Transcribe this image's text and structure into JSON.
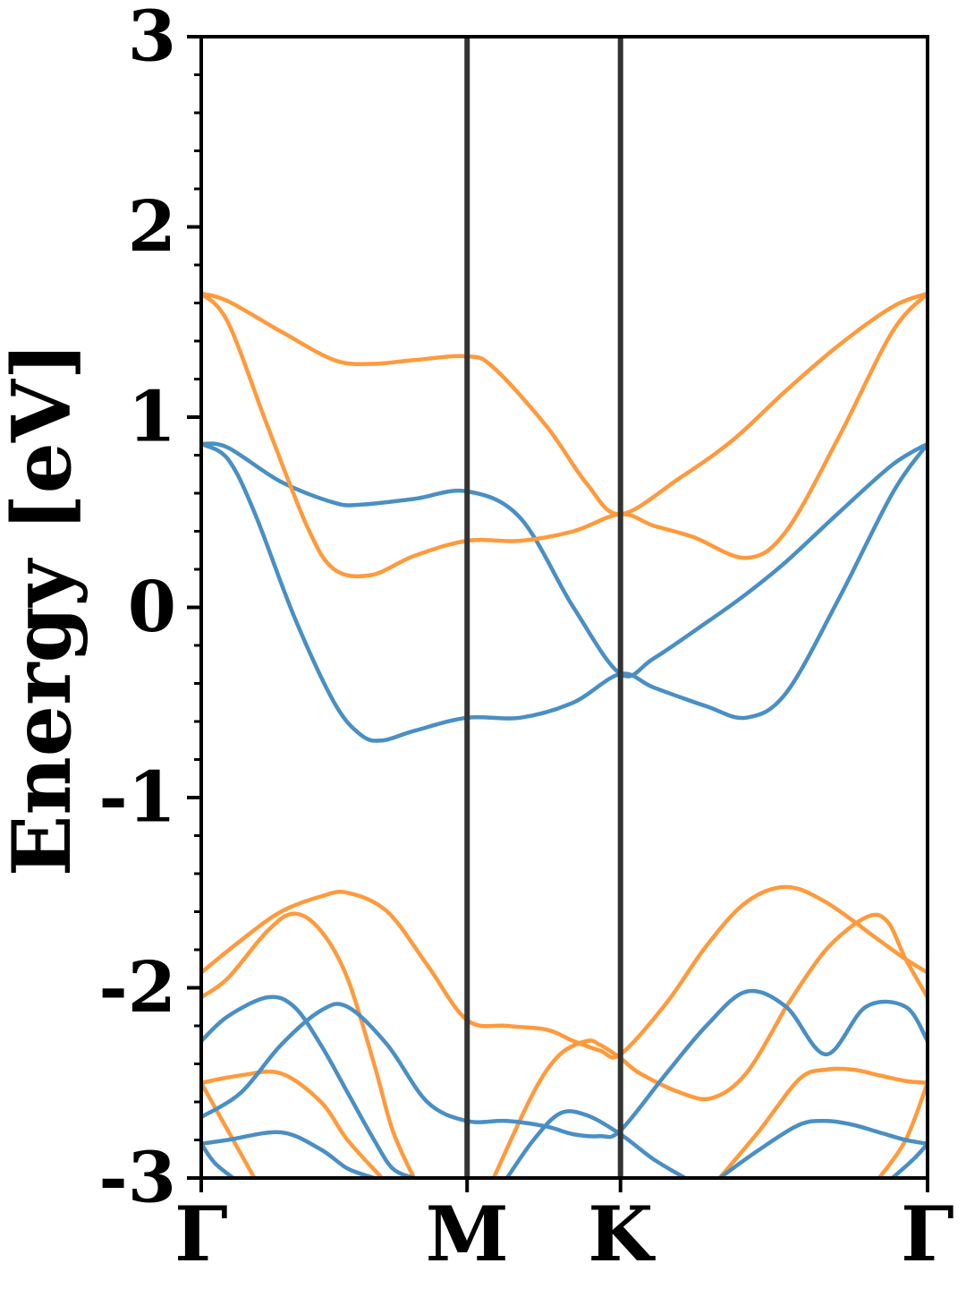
{
  "chart_data": {
    "type": "line",
    "title": "",
    "xlabel": "",
    "ylabel": "Energy [eV]",
    "ylim": [
      -3,
      3
    ],
    "xlim": [
      0,
      2.732
    ],
    "grid": false,
    "legend": "none",
    "yticks": [
      -3,
      -2,
      -1,
      0,
      1,
      2,
      3
    ],
    "ytick_labels": [
      "-3",
      "-2",
      "-1",
      "0",
      "1",
      "2",
      "3"
    ],
    "xticks": [
      0,
      1.0,
      1.577,
      2.732
    ],
    "xtick_labels": [
      "Γ",
      "M",
      "K",
      "Γ"
    ],
    "colors": {
      "blue": "#4a8fc3",
      "orange": "#ff9a3c",
      "symmetry_line": "#333333",
      "axes": "#000000"
    },
    "series": [
      {
        "color": "blue",
        "x": [
          0,
          0.1,
          0.3,
          0.5,
          0.6,
          0.8,
          1.0,
          1.2,
          1.4,
          1.577,
          1.7,
          1.9,
          2.05,
          2.2,
          2.4,
          2.6,
          2.732
        ],
        "y": [
          0.86,
          0.84,
          0.66,
          0.55,
          0.54,
          0.57,
          0.61,
          0.47,
          0.0,
          -0.35,
          -0.27,
          -0.08,
          0.07,
          0.24,
          0.5,
          0.75,
          0.86
        ]
      },
      {
        "color": "blue",
        "x": [
          0,
          0.1,
          0.2,
          0.35,
          0.5,
          0.6,
          0.68,
          0.8,
          1.0,
          1.2,
          1.4,
          1.577,
          1.7,
          1.9,
          2.05,
          2.2,
          2.4,
          2.6,
          2.732
        ],
        "y": [
          0.86,
          0.78,
          0.5,
          -0.05,
          -0.5,
          -0.67,
          -0.7,
          -0.65,
          -0.58,
          -0.58,
          -0.5,
          -0.35,
          -0.42,
          -0.52,
          -0.58,
          -0.45,
          0.05,
          0.6,
          0.86
        ]
      },
      {
        "color": "orange",
        "x": [
          0,
          0.1,
          0.3,
          0.5,
          0.64,
          0.8,
          1.0,
          1.1,
          1.3,
          1.45,
          1.577,
          1.8,
          2.0,
          2.2,
          2.4,
          2.6,
          2.732
        ],
        "y": [
          1.65,
          1.61,
          1.45,
          1.3,
          1.28,
          1.3,
          1.32,
          1.26,
          0.95,
          0.65,
          0.49,
          0.68,
          0.88,
          1.14,
          1.38,
          1.58,
          1.65
        ]
      },
      {
        "color": "orange",
        "x": [
          0,
          0.1,
          0.25,
          0.4,
          0.5,
          0.64,
          0.8,
          1.0,
          1.2,
          1.4,
          1.577,
          1.7,
          1.85,
          2.05,
          2.2,
          2.4,
          2.6,
          2.732
        ],
        "y": [
          1.65,
          1.5,
          0.95,
          0.42,
          0.2,
          0.17,
          0.27,
          0.35,
          0.35,
          0.4,
          0.49,
          0.43,
          0.37,
          0.26,
          0.4,
          0.9,
          1.45,
          1.65
        ]
      },
      {
        "color": "orange",
        "x": [
          0,
          0.15,
          0.3,
          0.45,
          0.55,
          0.7,
          0.85,
          1.0,
          1.15,
          1.3,
          1.4,
          1.5,
          1.577,
          1.75,
          1.9,
          2.05,
          2.2,
          2.35,
          2.55,
          2.65,
          2.732
        ],
        "y": [
          -1.92,
          -1.75,
          -1.6,
          -1.52,
          -1.5,
          -1.6,
          -1.88,
          -2.17,
          -2.2,
          -2.22,
          -2.28,
          -2.33,
          -2.35,
          -2.08,
          -1.78,
          -1.55,
          -1.47,
          -1.55,
          -1.75,
          -1.85,
          -1.92
        ]
      },
      {
        "color": "orange",
        "x": [
          0,
          0.1,
          0.25,
          0.35,
          0.45,
          0.55,
          0.65,
          0.72,
          0.8
        ],
        "y": [
          -2.05,
          -1.95,
          -1.7,
          -1.61,
          -1.7,
          -1.95,
          -2.4,
          -2.75,
          -3.0
        ]
      },
      {
        "color": "orange",
        "x": [
          1.1,
          1.25,
          1.35,
          1.45,
          1.5,
          1.577,
          1.65,
          1.8,
          1.92,
          2.05,
          2.2
        ],
        "y": [
          -3.0,
          -2.55,
          -2.35,
          -2.28,
          -2.3,
          -2.37,
          -2.45,
          -2.55,
          -2.58,
          -2.45,
          -2.1
        ]
      },
      {
        "color": "orange",
        "x": [
          2.2,
          2.35,
          2.5,
          2.58,
          2.65,
          2.732
        ],
        "y": [
          -2.1,
          -1.8,
          -1.63,
          -1.65,
          -1.85,
          -2.05
        ]
      },
      {
        "color": "orange",
        "x": [
          0,
          0.15,
          0.3,
          0.45,
          0.55,
          0.68
        ],
        "y": [
          -2.5,
          -2.46,
          -2.45,
          -2.6,
          -2.8,
          -3.0
        ]
      },
      {
        "color": "orange",
        "x": [
          0,
          0.1,
          0.2
        ],
        "y": [
          -2.5,
          -2.75,
          -3.0
        ]
      },
      {
        "color": "orange",
        "x": [
          1.95,
          2.1,
          2.25,
          2.35,
          2.45,
          2.55,
          2.65,
          2.732
        ],
        "y": [
          -3.0,
          -2.75,
          -2.48,
          -2.43,
          -2.43,
          -2.46,
          -2.49,
          -2.5
        ]
      },
      {
        "color": "orange",
        "x": [
          2.55,
          2.65,
          2.732
        ],
        "y": [
          -3.0,
          -2.8,
          -2.5
        ]
      },
      {
        "color": "blue",
        "x": [
          0,
          0.1,
          0.25,
          0.35,
          0.45,
          0.55,
          0.65,
          0.72,
          0.8
        ],
        "y": [
          -2.28,
          -2.15,
          -2.05,
          -2.1,
          -2.3,
          -2.55,
          -2.8,
          -2.95,
          -3.0
        ]
      },
      {
        "color": "blue",
        "x": [
          0,
          0.15,
          0.3,
          0.45,
          0.55,
          0.7,
          0.85,
          1.0,
          1.15,
          1.3,
          1.4,
          1.5,
          1.577,
          1.75,
          1.9,
          2.05,
          2.2,
          2.35,
          2.5,
          2.65,
          2.732
        ],
        "y": [
          -2.68,
          -2.55,
          -2.3,
          -2.12,
          -2.1,
          -2.3,
          -2.6,
          -2.7,
          -2.7,
          -2.73,
          -2.77,
          -2.78,
          -2.75,
          -2.45,
          -2.2,
          -2.02,
          -2.1,
          -2.35,
          -2.1,
          -2.1,
          -2.28
        ]
      },
      {
        "color": "blue",
        "x": [
          0,
          0.1,
          0.3,
          0.45,
          0.55,
          0.65
        ],
        "y": [
          -2.82,
          -2.8,
          -2.76,
          -2.85,
          -2.95,
          -3.0
        ]
      },
      {
        "color": "blue",
        "x": [
          0,
          0.05,
          0.12
        ],
        "y": [
          -2.82,
          -2.92,
          -3.0
        ]
      },
      {
        "color": "blue",
        "x": [
          1.15,
          1.25,
          1.35,
          1.45,
          1.577,
          1.7,
          1.82
        ],
        "y": [
          -3.0,
          -2.8,
          -2.66,
          -2.67,
          -2.77,
          -2.9,
          -3.0
        ]
      },
      {
        "color": "blue",
        "x": [
          1.95,
          2.1,
          2.25,
          2.35,
          2.45,
          2.55,
          2.65,
          2.732
        ],
        "y": [
          -3.0,
          -2.85,
          -2.72,
          -2.7,
          -2.72,
          -2.76,
          -2.8,
          -2.82
        ]
      },
      {
        "color": "blue",
        "x": [
          2.6,
          2.68,
          2.732
        ],
        "y": [
          -3.0,
          -2.9,
          -2.82
        ]
      }
    ]
  }
}
